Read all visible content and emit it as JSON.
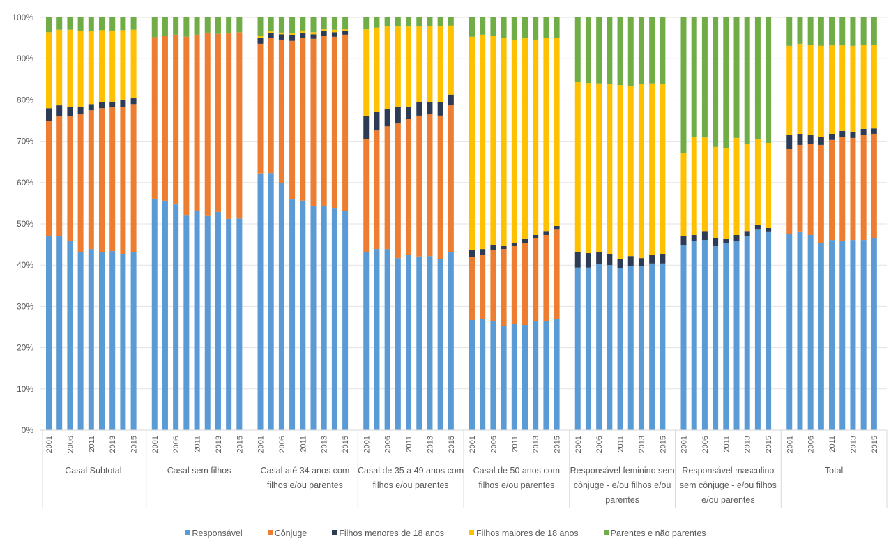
{
  "chart_data": {
    "type": "bar",
    "stacked": true,
    "normalized": true,
    "title": "",
    "xlabel": "",
    "ylabel": "",
    "ylim": [
      0,
      100
    ],
    "yticks": [
      "0%",
      "10%",
      "20%",
      "30%",
      "40%",
      "50%",
      "60%",
      "70%",
      "80%",
      "90%",
      "100%"
    ],
    "grid": true,
    "legend_position": "bottom",
    "bar_labels": [
      "2001",
      "",
      "2006",
      "",
      "2011",
      "",
      "2013",
      "",
      "2015"
    ],
    "series_names": [
      "Responsável",
      "Cônjuge",
      "Filhos menores de 18 anos",
      "Filhos maiores de 18 anos",
      "Parentes e não parentes"
    ],
    "series_colors": [
      "#5B9BD5",
      "#ED7D31",
      "#2E3B55",
      "#FFC000",
      "#70AD47"
    ],
    "groups": [
      {
        "name": "Casal Subtotal",
        "name_lines": [
          "Casal Subtotal"
        ],
        "values": [
          [
            47,
            28,
            3,
            18.4,
            3.6
          ],
          [
            47,
            29,
            2.7,
            18.3,
            3
          ],
          [
            45.8,
            30.2,
            2.3,
            18.7,
            3
          ],
          [
            43.2,
            33.3,
            1.8,
            18.4,
            3.3
          ],
          [
            43.9,
            33.6,
            1.5,
            17.7,
            3.3
          ],
          [
            43.1,
            34.9,
            1.4,
            17.5,
            3.1
          ],
          [
            43.4,
            34.8,
            1.4,
            17.2,
            3.2
          ],
          [
            42.7,
            35.6,
            1.6,
            17,
            3.1
          ],
          [
            43.1,
            35.9,
            1.4,
            16.6,
            3
          ]
        ]
      },
      {
        "name": "Casal sem filhos",
        "name_lines": [
          "Casal sem filhos"
        ],
        "values": [
          [
            56.1,
            39.1,
            0,
            0,
            4.8
          ],
          [
            55.6,
            40,
            0,
            0,
            4.4
          ],
          [
            54.7,
            41.1,
            0,
            0,
            4.2
          ],
          [
            52,
            43.3,
            0,
            0,
            4.7
          ],
          [
            53.2,
            42.6,
            0,
            0,
            4.2
          ],
          [
            51.9,
            44.4,
            0,
            0,
            3.7
          ],
          [
            52.9,
            43.1,
            0,
            0,
            4
          ],
          [
            51.2,
            44.9,
            0,
            0,
            3.9
          ],
          [
            51.3,
            45.1,
            0,
            0,
            3.6
          ]
        ]
      },
      {
        "name": "Casal até 34 anos com filhos e/ou parentes",
        "name_lines": [
          "Casal até 34 anos com",
          "filhos e/ou parentes"
        ],
        "values": [
          [
            62.2,
            31.4,
            1.5,
            0.5,
            4.4
          ],
          [
            62.3,
            32.8,
            1.2,
            0.3,
            3.4
          ],
          [
            59.8,
            34.8,
            1.3,
            0.4,
            3.7
          ],
          [
            55.9,
            38.4,
            1.5,
            0.3,
            3.9
          ],
          [
            55.6,
            39.5,
            1.2,
            0.5,
            3.2
          ],
          [
            54.4,
            40.4,
            1.1,
            0.5,
            3.6
          ],
          [
            54.4,
            41.2,
            1.2,
            0.3,
            2.9
          ],
          [
            53.7,
            41.6,
            1.1,
            0.6,
            3
          ],
          [
            53.2,
            42.6,
            1,
            0.3,
            2.9
          ]
        ]
      },
      {
        "name": "Casal de 35 a 49 anos com filhos e/ou parentes",
        "name_lines": [
          "Casal de 35 a 49 anos com",
          "filhos e/ou parentes"
        ],
        "values": [
          [
            43.2,
            27.4,
            5.6,
            20.9,
            2.9
          ],
          [
            43.9,
            28.7,
            4.6,
            20.3,
            2.5
          ],
          [
            43.9,
            29.7,
            4.1,
            20.1,
            2.2
          ],
          [
            41.7,
            32.6,
            4.1,
            19.4,
            2.2
          ],
          [
            42.4,
            33.1,
            2.9,
            19.4,
            2.2
          ],
          [
            42.1,
            34.1,
            3.2,
            18.4,
            2.2
          ],
          [
            42.2,
            34.3,
            2.9,
            18.4,
            2.2
          ],
          [
            41.4,
            34.8,
            3.2,
            18.4,
            2.2
          ],
          [
            43.1,
            35.6,
            2.6,
            16.7,
            2
          ]
        ]
      },
      {
        "name": "Casal de 50 anos com filhos e/ou parentes",
        "name_lines": [
          "Casal de 50 anos com",
          "filhos e/ou parentes"
        ],
        "values": [
          [
            26.7,
            15.2,
            1.7,
            51.7,
            4.7
          ],
          [
            26.9,
            15.5,
            1.5,
            51.9,
            4.2
          ],
          [
            26.4,
            17.2,
            1.2,
            50.8,
            4.4
          ],
          [
            25.3,
            18.6,
            0.7,
            50.5,
            4.9
          ],
          [
            25.8,
            18.8,
            0.8,
            49.2,
            5.4
          ],
          [
            25.5,
            19.9,
            0.9,
            48.8,
            4.9
          ],
          [
            26.4,
            20.1,
            0.8,
            47.3,
            5.4
          ],
          [
            26.5,
            20.8,
            0.8,
            47,
            4.9
          ],
          [
            26.9,
            21.7,
            0.9,
            45.6,
            4.9
          ]
        ]
      },
      {
        "name": "Responsável feminino sem cônjuge - e/ou filhos e/ou parentes",
        "name_lines": [
          "Responsável feminino sem",
          "cônjuge - e/ou filhos e/ou",
          "parentes"
        ],
        "values": [
          [
            39.4,
            0,
            3.8,
            41.2,
            15.6
          ],
          [
            39.4,
            0,
            3.5,
            41.2,
            15.9
          ],
          [
            40.2,
            0,
            2.9,
            40.9,
            16
          ],
          [
            40,
            0,
            2.6,
            41.2,
            16.2
          ],
          [
            39.2,
            0,
            2.2,
            42.2,
            16.4
          ],
          [
            39.7,
            0,
            2.5,
            41.1,
            16.7
          ],
          [
            39.7,
            0,
            2,
            42.1,
            16.2
          ],
          [
            40.4,
            0,
            2,
            41.6,
            16
          ],
          [
            40.4,
            0,
            2.2,
            41.2,
            16.2
          ]
        ]
      },
      {
        "name": "Responsável masculino sem cônjuge - e/ou filhos e/ou parentes",
        "name_lines": [
          "Responsável masculino",
          "sem cônjuge - e/ou filhos",
          "e/ou parentes"
        ],
        "values": [
          [
            44.8,
            0,
            2.2,
            20.2,
            32.8
          ],
          [
            45.8,
            0,
            1.5,
            23.8,
            28.9
          ],
          [
            46.1,
            0,
            2,
            22.8,
            29.1
          ],
          [
            44.6,
            0,
            2,
            22,
            31.4
          ],
          [
            45.3,
            0,
            1,
            22.1,
            31.6
          ],
          [
            45.8,
            0,
            1.5,
            23.5,
            29.2
          ],
          [
            47.1,
            0,
            1,
            21.3,
            30.6
          ],
          [
            48.6,
            0,
            1.2,
            20.8,
            29.4
          ],
          [
            48,
            0,
            1,
            20.6,
            30.4
          ]
        ]
      },
      {
        "name": "Total",
        "name_lines": [
          "Total"
        ],
        "values": [
          [
            47.6,
            20.6,
            3.3,
            21.6,
            6.9
          ],
          [
            48,
            21.1,
            2.7,
            21.8,
            6.4
          ],
          [
            47.3,
            22.1,
            2.1,
            21.9,
            6.6
          ],
          [
            45.4,
            23.7,
            2,
            22,
            6.9
          ],
          [
            46.1,
            24.2,
            1.5,
            21.4,
            6.8
          ],
          [
            45.8,
            25.2,
            1.5,
            20.7,
            6.8
          ],
          [
            46.1,
            24.7,
            1.5,
            20.8,
            6.9
          ],
          [
            46.1,
            25.4,
            1.5,
            20.4,
            6.6
          ],
          [
            46.5,
            25.3,
            1.3,
            20.3,
            6.6
          ]
        ]
      }
    ]
  },
  "legend": {
    "items": [
      {
        "label": "Responsável",
        "color": "#5B9BD5"
      },
      {
        "label": "Cônjuge",
        "color": "#ED7D31"
      },
      {
        "label": "Filhos menores de 18 anos",
        "color": "#2E3B55"
      },
      {
        "label": "Filhos maiores de 18 anos",
        "color": "#FFC000"
      },
      {
        "label": "Parentes e não parentes",
        "color": "#70AD47"
      }
    ]
  }
}
